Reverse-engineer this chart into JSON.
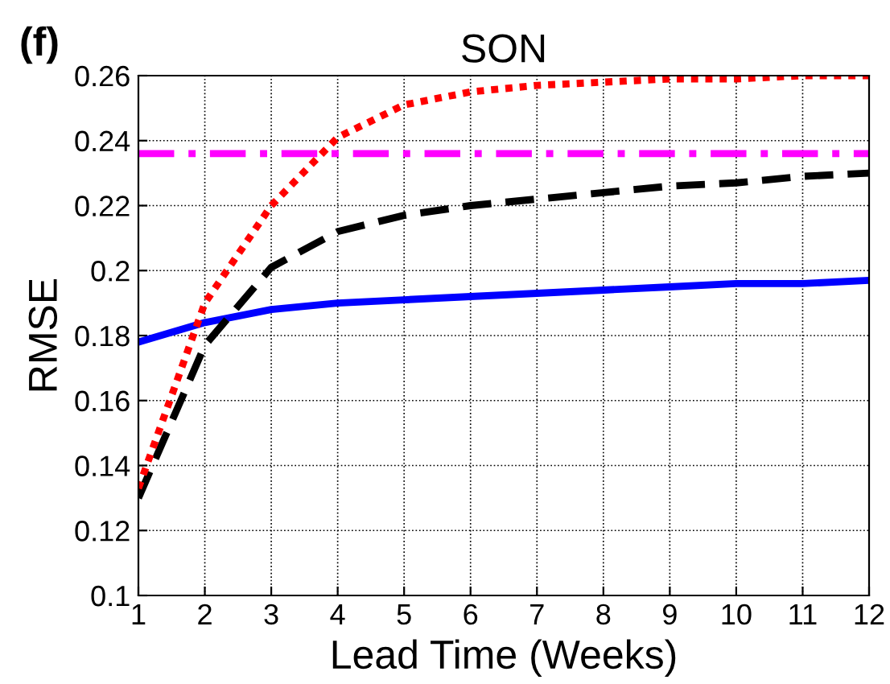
{
  "chart_data": {
    "type": "line",
    "title": "SON",
    "xlabel": "Lead Time (Weeks)",
    "ylabel": "RMSE",
    "annotations": [
      "(f)"
    ],
    "x": [
      1,
      2,
      3,
      4,
      5,
      6,
      7,
      8,
      9,
      10,
      11,
      12
    ],
    "series": [
      {
        "color": "#0000ff",
        "line_style": "solid",
        "values": [
          0.178,
          0.184,
          0.188,
          0.19,
          0.191,
          0.192,
          0.193,
          0.194,
          0.195,
          0.196,
          0.196,
          0.197
        ]
      },
      {
        "color": "#000000",
        "line_style": "dashed",
        "values": [
          0.13,
          0.177,
          0.201,
          0.212,
          0.217,
          0.22,
          0.222,
          0.224,
          0.226,
          0.227,
          0.229,
          0.23
        ]
      },
      {
        "color": "#ff0000",
        "line_style": "dotted",
        "values": [
          0.133,
          0.19,
          0.22,
          0.241,
          0.251,
          0.255,
          0.257,
          0.258,
          0.259,
          0.259,
          0.26,
          0.26
        ]
      },
      {
        "color": "#ff00ff",
        "line_style": "dashdot",
        "values": [
          0.236,
          0.236,
          0.236,
          0.236,
          0.236,
          0.236,
          0.236,
          0.236,
          0.236,
          0.236,
          0.236,
          0.236
        ]
      }
    ],
    "xlim": [
      1,
      12
    ],
    "xticks": [
      1,
      2,
      3,
      4,
      5,
      6,
      7,
      8,
      9,
      10,
      11,
      12
    ],
    "ylim": [
      0.1,
      0.26
    ],
    "yticks": [
      0.1,
      0.12,
      0.14,
      0.16,
      0.18,
      0.2,
      0.22,
      0.24,
      0.26
    ],
    "grid": true,
    "marker": "none"
  }
}
